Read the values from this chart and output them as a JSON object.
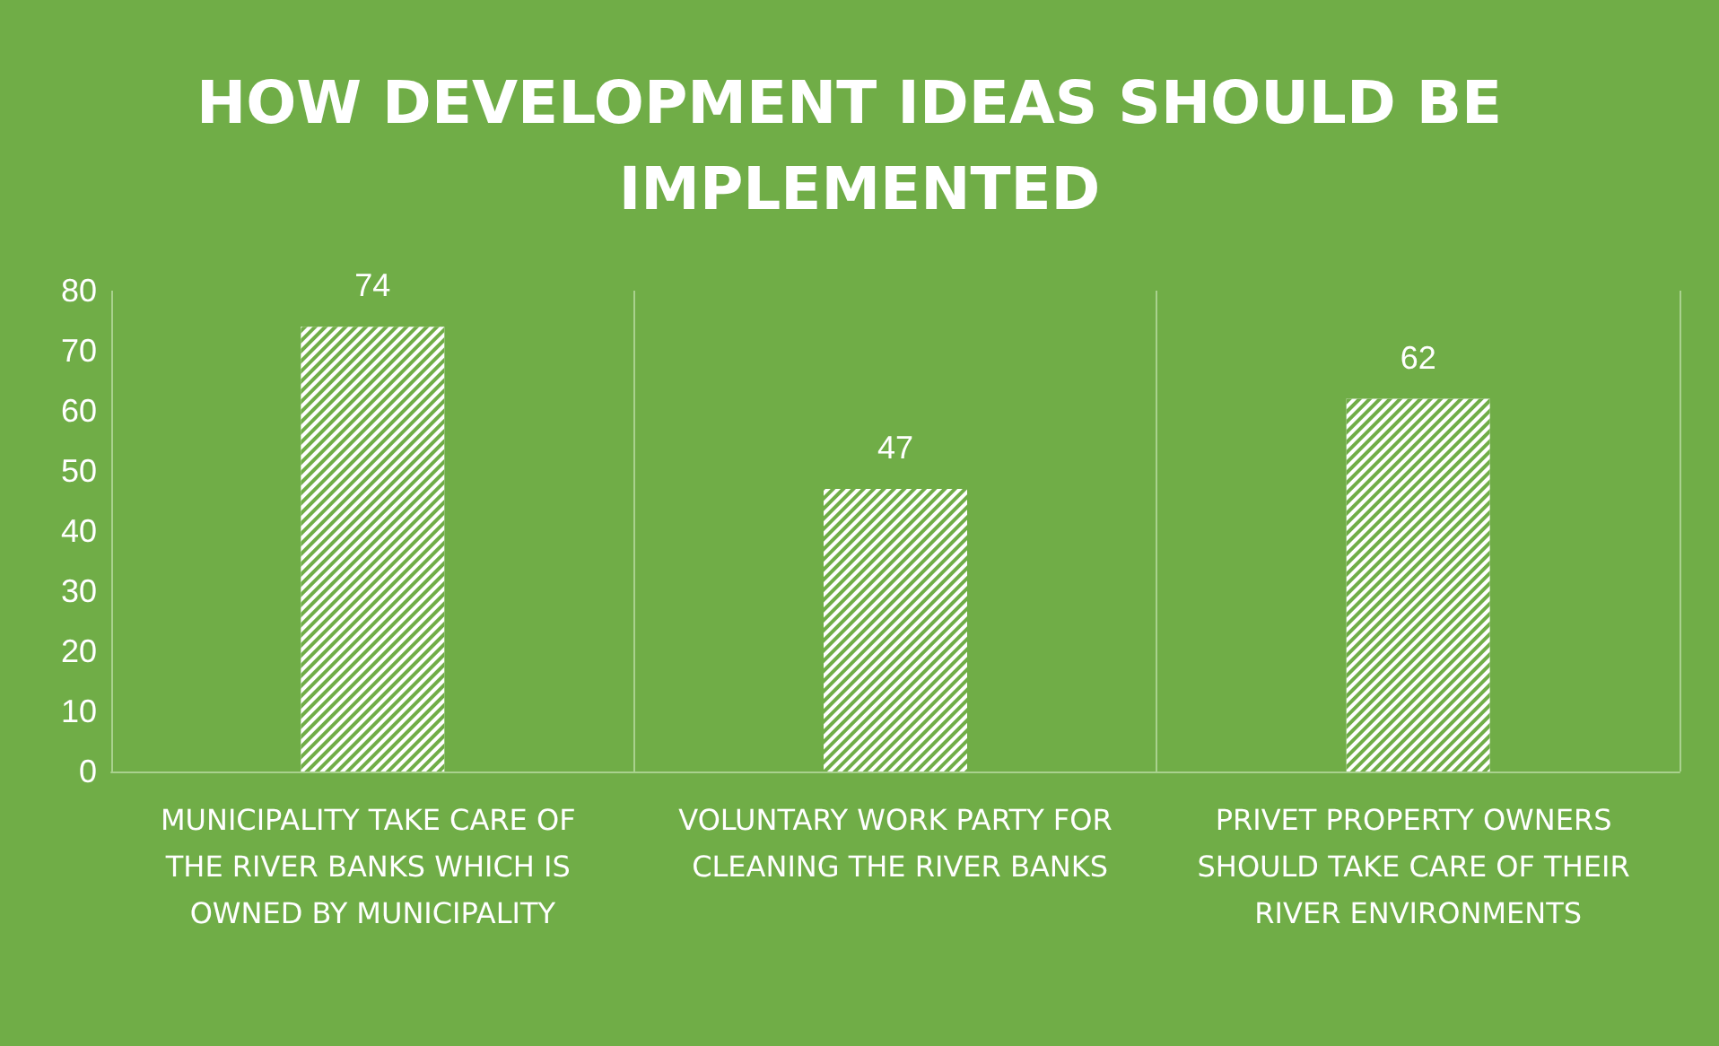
{
  "chart_data": {
    "type": "bar",
    "title": "HOW DEVELOPMENT IDEAS SHOULD BE IMPLEMENTED",
    "categories": [
      "MUNICIPALITY TAKE CARE OF THE RIVER BANKS WHICH IS OWNED BY MUNICIPALITY",
      "VOLUNTARY WORK PARTY FOR CLEANING THE RIVER BANKS",
      "PRIVET PROPERTY OWNERS SHOULD TAKE CARE OF THEIR RIVER ENVIRONMENTS"
    ],
    "values": [
      74,
      47,
      62
    ],
    "color": "#ffffff",
    "ylim": [
      0,
      80
    ],
    "yticks": [
      0,
      10,
      20,
      30,
      40,
      50,
      60,
      70,
      80
    ],
    "grid": "x",
    "data_labels": true
  }
}
